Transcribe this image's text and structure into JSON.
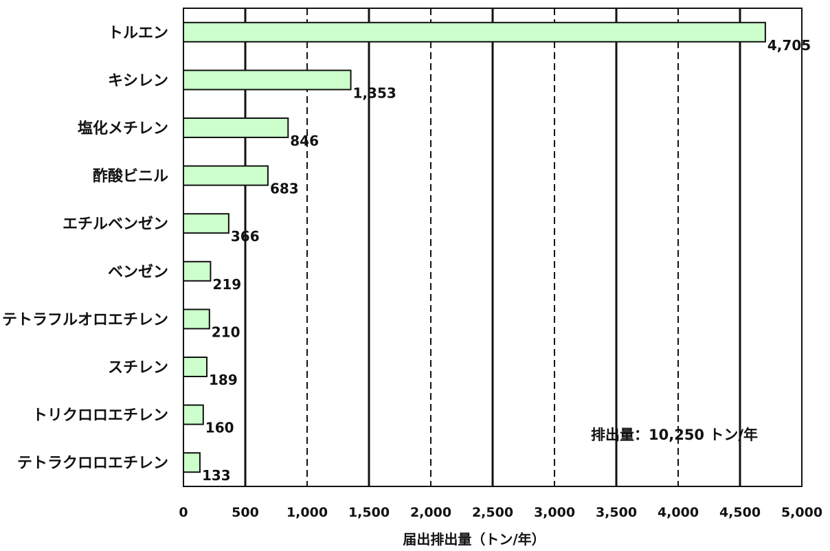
{
  "chart_data": {
    "type": "bar",
    "orientation": "horizontal",
    "categories": [
      "トルエン",
      "キシレン",
      "塩化メチレン",
      "酢酸ビニル",
      "エチルベンゼン",
      "ベンゼン",
      "テトラフルオロエチレン",
      "スチレン",
      "トリクロロエチレン",
      "テトラクロロエチレン"
    ],
    "values": [
      4705,
      1353,
      846,
      683,
      366,
      219,
      210,
      189,
      160,
      133
    ],
    "value_labels": [
      "4,705",
      "1,353",
      "846",
      "683",
      "366",
      "219",
      "210",
      "189",
      "160",
      "133"
    ],
    "xlabel": "届出排出量（トン/年）",
    "xlim": [
      0,
      5000
    ],
    "xticks": [
      0,
      500,
      1000,
      1500,
      2000,
      2500,
      3000,
      3500,
      4000,
      4500,
      5000
    ],
    "xtick_labels": [
      "0",
      "500",
      "1,000",
      "1,500",
      "2,000",
      "2,500",
      "3,000",
      "3,500",
      "4,000",
      "4,500",
      "5,000"
    ],
    "grid": true,
    "annotation": "排出量：10,250 トン/年",
    "bar_color": "#ccffcc",
    "bar_edge_color": "#111111"
  }
}
